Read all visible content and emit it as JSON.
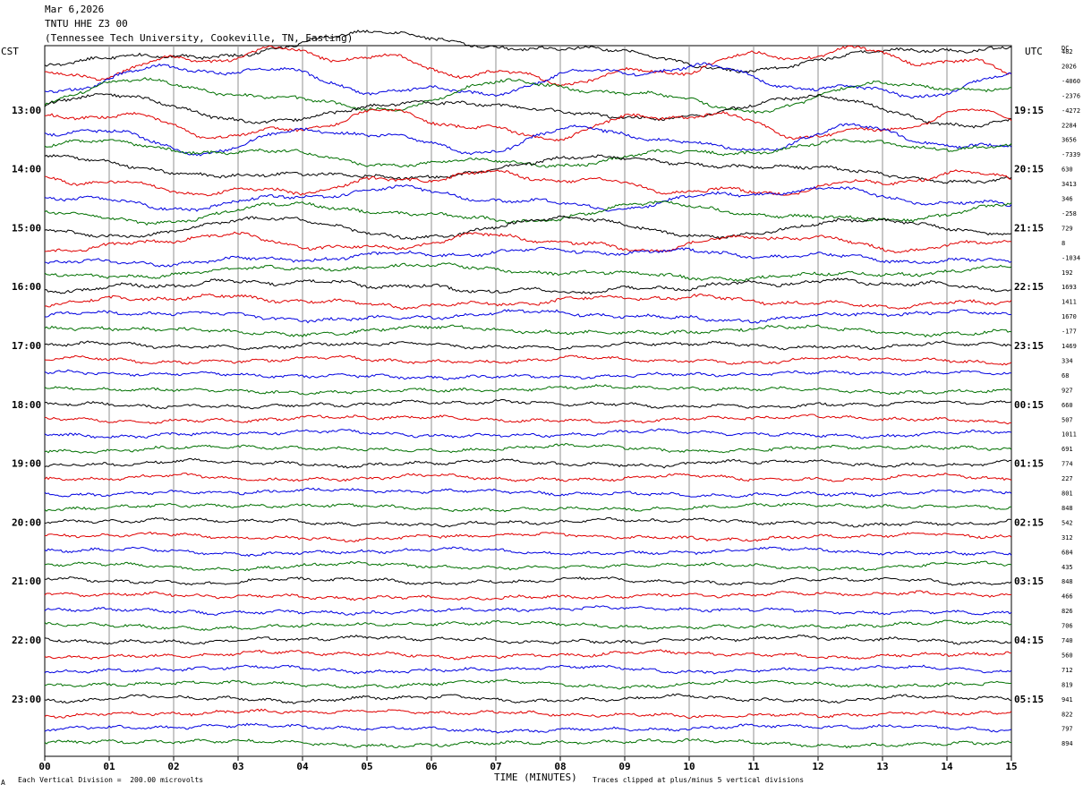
{
  "header": {
    "date": "Mar 6,2026",
    "station": "TNTU HHE Z3 00",
    "location": "(Tennessee Tech University, Cookeville, TN, Easting)"
  },
  "left_tz": "CST",
  "right_tz": "UTC",
  "dc_label": "DC",
  "footer": {
    "scale_note": "Each Vertical Division =  200.00 microvolts",
    "clip_note": "Traces clipped at plus/minus 5 vertical divisions",
    "corner_mark": "A"
  },
  "chart_data": {
    "type": "line",
    "title": "",
    "xlabel": "TIME (MINUTES)",
    "x_ticks": [
      "00",
      "01",
      "02",
      "03",
      "04",
      "05",
      "06",
      "07",
      "08",
      "09",
      "10",
      "11",
      "12",
      "13",
      "14",
      "15"
    ],
    "xlim": [
      0,
      15
    ],
    "grid": true,
    "trace_colors": [
      "#000000",
      "#e00000",
      "#0000e0",
      "#007000"
    ],
    "left_hour_labels": [
      "13:00",
      "14:00",
      "15:00",
      "16:00",
      "17:00",
      "18:00",
      "19:00",
      "20:00",
      "21:00",
      "22:00",
      "23:00"
    ],
    "right_hour_labels": [
      "19:15",
      "20:15",
      "21:15",
      "22:15",
      "23:15",
      "00:15",
      "01:15",
      "02:15",
      "03:15",
      "04:15",
      "05:15"
    ],
    "dc_offsets": [
      482,
      2026,
      -4060,
      -2376,
      -4272,
      2284,
      3656,
      -7339,
      630,
      3413,
      346,
      -258,
      729,
      8,
      -1034,
      192,
      1693,
      1411,
      1670,
      -177,
      1469,
      334,
      68,
      927,
      660,
      507,
      1011,
      691,
      774,
      227,
      801,
      848,
      542,
      312,
      684,
      435,
      848,
      466,
      826,
      706,
      740,
      560,
      712,
      819,
      941,
      822,
      797,
      894
    ]
  }
}
